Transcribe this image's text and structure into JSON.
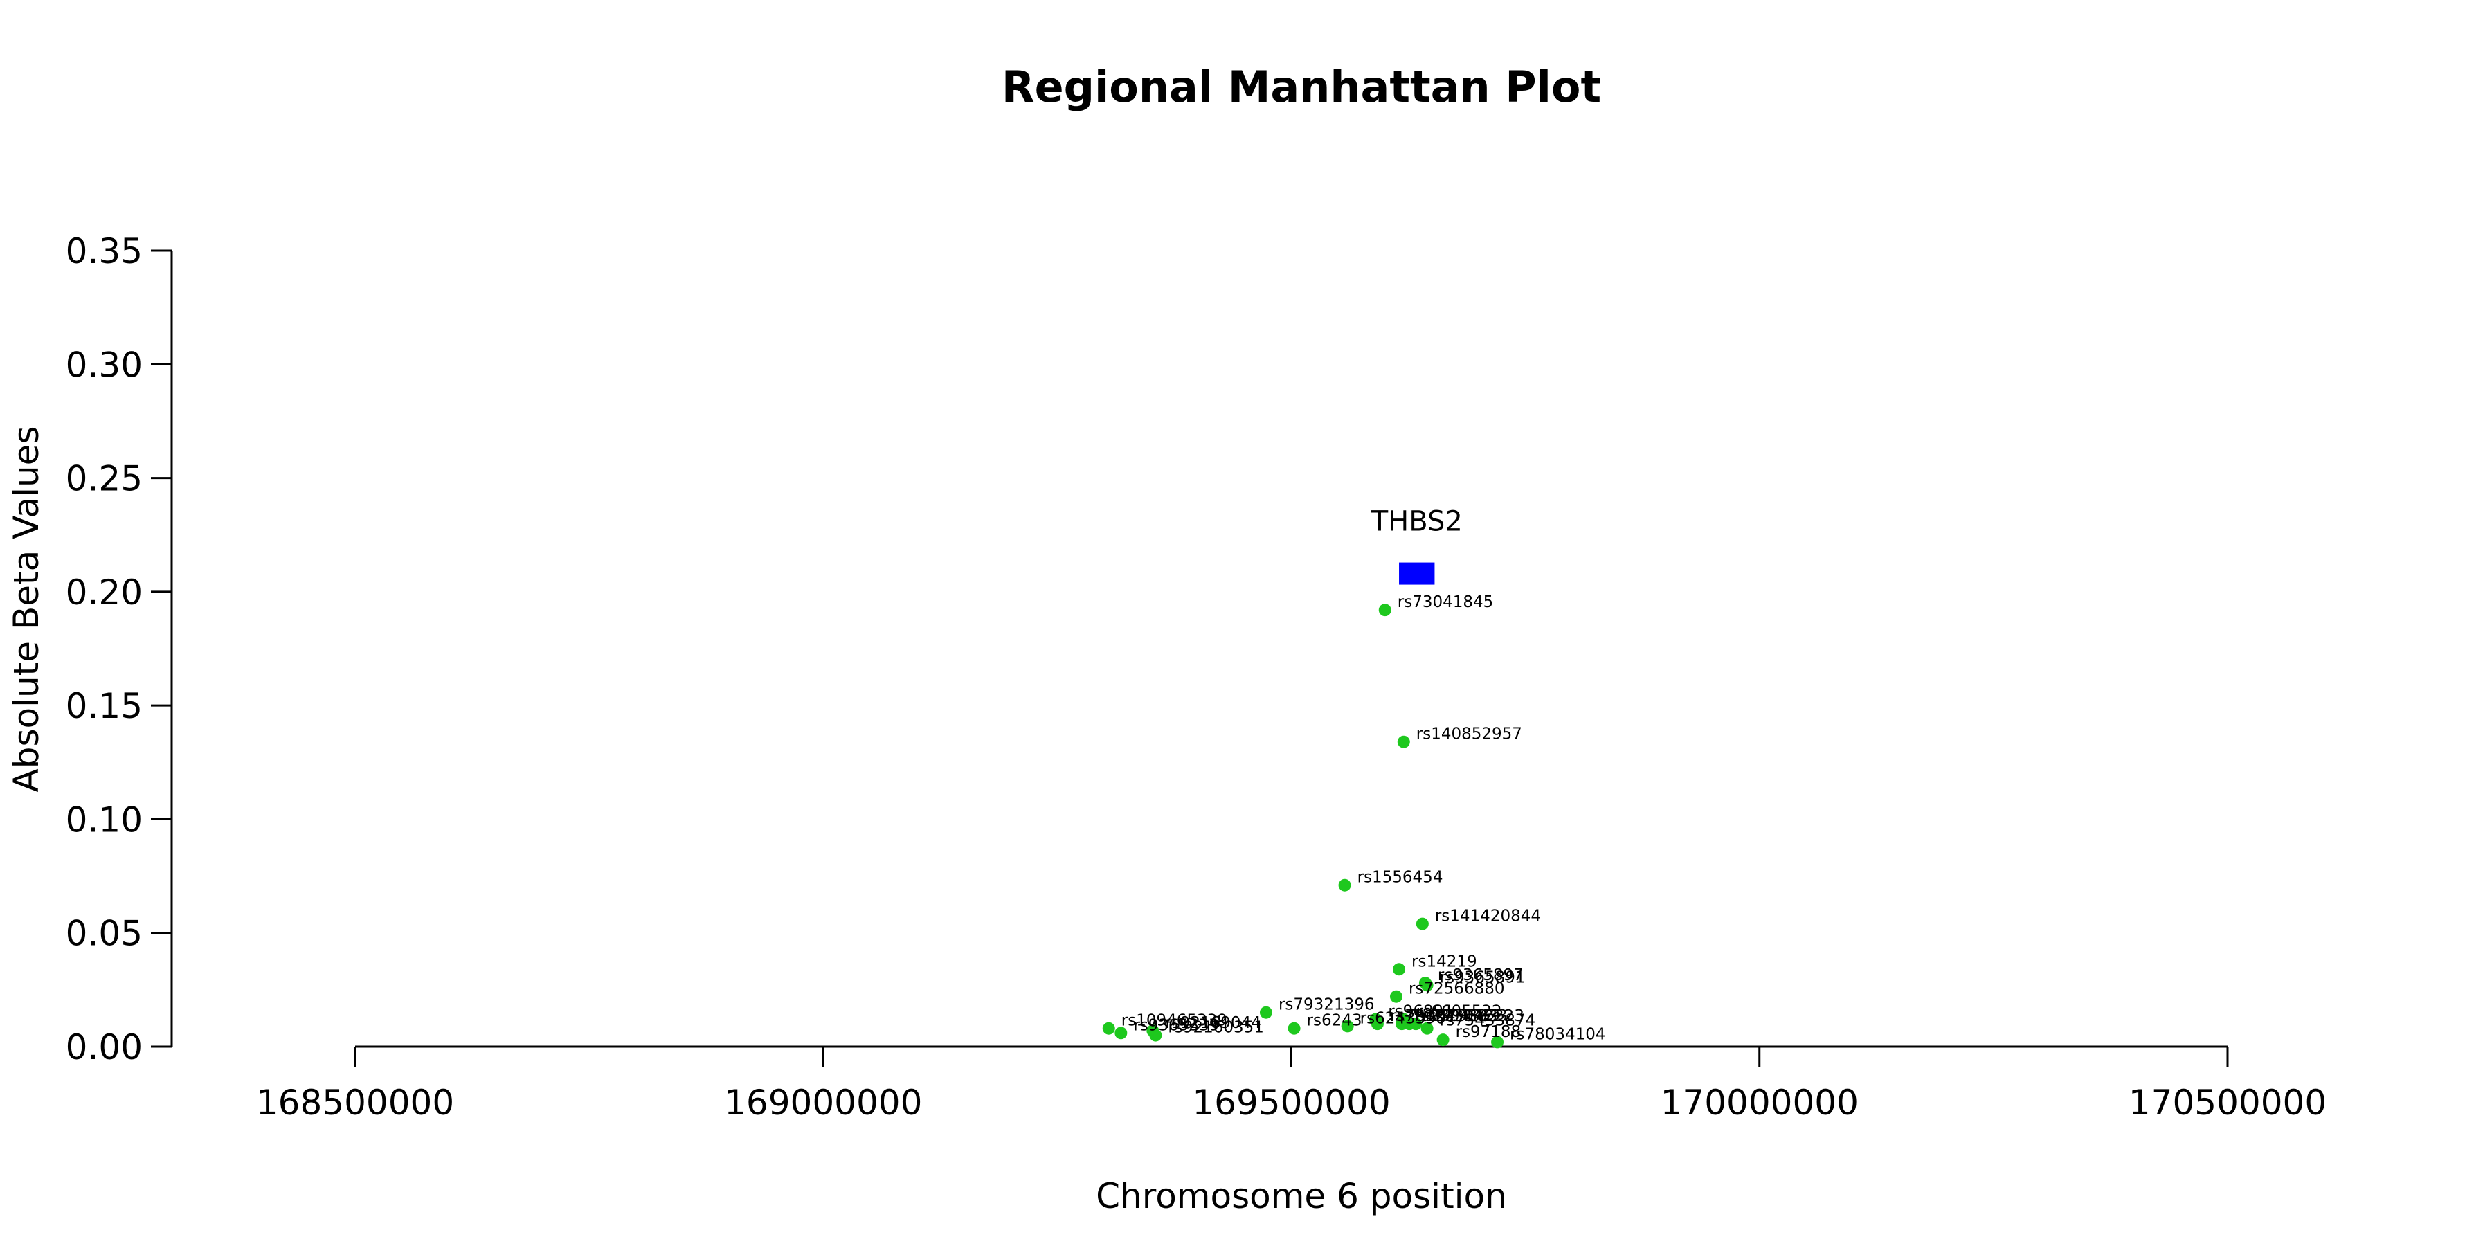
{
  "chart_data": {
    "type": "scatter",
    "title": "Regional Manhattan Plot",
    "xlabel": "Chromosome 6 position",
    "ylabel": "Absolute Beta Values",
    "xlim": [
      168300000,
      170500000
    ],
    "ylim": [
      0,
      0.35
    ],
    "x_ticks": [
      168500000,
      169000000,
      169500000,
      170000000,
      170500000
    ],
    "x_tick_labels": [
      "168500000",
      "169000000",
      "169500000",
      "170000000",
      "170500000"
    ],
    "y_ticks": [
      0.0,
      0.05,
      0.1,
      0.15,
      0.2,
      0.25,
      0.3,
      0.35
    ],
    "y_tick_labels": [
      "0.00",
      "0.05",
      "0.10",
      "0.15",
      "0.20",
      "0.25",
      "0.30",
      "0.35"
    ],
    "point_color": "#1ec81e",
    "gene_color": "#0000ff",
    "genes": [
      {
        "name": "THBS2",
        "start": 169615000,
        "end": 169653000,
        "y": 0.208
      }
    ],
    "points": [
      {
        "label": "rs73041845",
        "x": 169600000,
        "y": 0.192
      },
      {
        "label": "rs140852957",
        "x": 169620000,
        "y": 0.134
      },
      {
        "label": "rs1556454",
        "x": 169557000,
        "y": 0.071
      },
      {
        "label": "rs141420844",
        "x": 169640000,
        "y": 0.054
      },
      {
        "label": "rs14219",
        "x": 169615000,
        "y": 0.034
      },
      {
        "label": "rs9365897",
        "x": 169643000,
        "y": 0.028
      },
      {
        "label": "rs9365891",
        "x": 169645000,
        "y": 0.027
      },
      {
        "label": "rs72566880",
        "x": 169612000,
        "y": 0.022
      },
      {
        "label": "rs79321396",
        "x": 169473000,
        "y": 0.015
      },
      {
        "label": "rs96891",
        "x": 169590000,
        "y": 0.012
      },
      {
        "label": "rs6605522",
        "x": 169620000,
        "y": 0.012
      },
      {
        "label": "rs6243590",
        "x": 169560000,
        "y": 0.009
      },
      {
        "label": "rs78124",
        "x": 169592000,
        "y": 0.01
      },
      {
        "label": "rs2304869",
        "x": 169618000,
        "y": 0.01
      },
      {
        "label": "rs3798033",
        "x": 169626000,
        "y": 0.01
      },
      {
        "label": "rs73042223",
        "x": 169633000,
        "y": 0.01
      },
      {
        "label": "rs6243",
        "x": 169503000,
        "y": 0.008
      },
      {
        "label": "rs75433874",
        "x": 169645000,
        "y": 0.008
      },
      {
        "label": "rs109465339",
        "x": 169305000,
        "y": 0.008
      },
      {
        "label": "rs92169044",
        "x": 169352000,
        "y": 0.007
      },
      {
        "label": "rs9365339",
        "x": 169318000,
        "y": 0.006
      },
      {
        "label": "rs92160351",
        "x": 169355000,
        "y": 0.005
      },
      {
        "label": "rs97188",
        "x": 169662000,
        "y": 0.003
      },
      {
        "label": "rs78034104",
        "x": 169720000,
        "y": 0.002
      }
    ]
  }
}
